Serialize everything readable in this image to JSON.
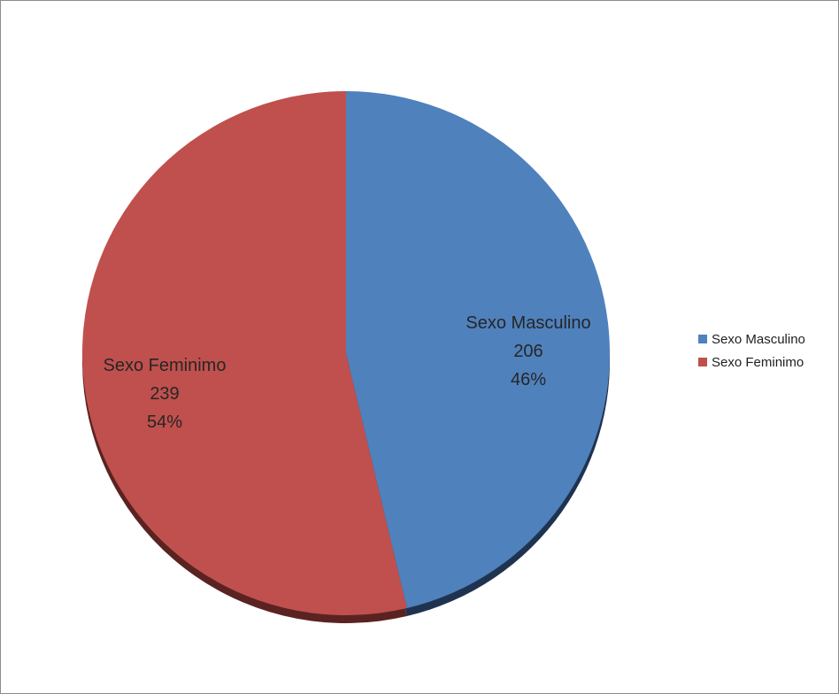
{
  "chart_data": {
    "type": "pie",
    "title": "",
    "slices": [
      {
        "name": "Sexo Masculino",
        "value": 206,
        "percent": "46%",
        "color": "#4f81bd",
        "shade": "#1f3350"
      },
      {
        "name": "Sexo Feminimo",
        "value": 239,
        "percent": "54%",
        "color": "#c0504d",
        "shade": "#5a2321"
      }
    ],
    "legend": {
      "placement": "right",
      "items": [
        {
          "label": "Sexo Masculino",
          "color": "#4f81bd"
        },
        {
          "label": "Sexo Feminimo",
          "color": "#c0504d"
        }
      ]
    }
  }
}
